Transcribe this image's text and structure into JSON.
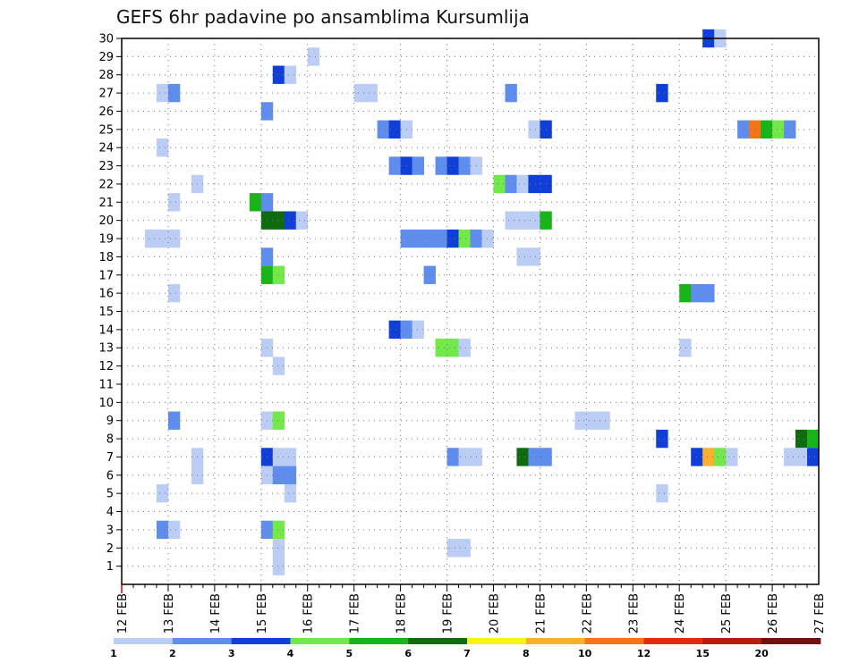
{
  "chart_data": {
    "type": "heatmap",
    "title": "GEFS 6hr padavine po ansamblima Kursumlija",
    "xlabel": "",
    "ylabel": "",
    "y_ticks": [
      "1",
      "2",
      "3",
      "4",
      "5",
      "6",
      "7",
      "8",
      "9",
      "10",
      "11",
      "12",
      "13",
      "14",
      "15",
      "16",
      "17",
      "18",
      "19",
      "20",
      "21",
      "22",
      "23",
      "24",
      "25",
      "26",
      "27",
      "28",
      "29",
      "30"
    ],
    "x_ticks": [
      "12 FEB",
      "13 FEB",
      "14 FEB",
      "15 FEB",
      "16 FEB",
      "17 FEB",
      "18 FEB",
      "19 FEB",
      "20 FEB",
      "21 FEB",
      "22 FEB",
      "23 FEB",
      "24 FEB",
      "25 FEB",
      "26 FEB",
      "27 FEB"
    ],
    "x_range_days": [
      12,
      27
    ],
    "y_range": [
      0,
      30
    ],
    "grid": true,
    "legend": {
      "position": "bottom",
      "levels": [
        "1",
        "2",
        "3",
        "4",
        "5",
        "6",
        "7",
        "8",
        "10",
        "12",
        "15",
        "20"
      ],
      "colors": [
        "#bccdf5",
        "#5f8ded",
        "#0f3fd6",
        "#72e84b",
        "#18b518",
        "#0e6b0e",
        "#f9f313",
        "#f9b030",
        "#f57417",
        "#e22a0e",
        "#b51e0e",
        "#701010"
      ]
    },
    "cells": [
      {
        "m": 30,
        "d": 24.5,
        "c": 3
      },
      {
        "m": 30,
        "d": 24.75,
        "c": 1
      },
      {
        "m": 29,
        "d": 16.0,
        "c": 1
      },
      {
        "m": 28,
        "d": 15.25,
        "c": 3
      },
      {
        "m": 28,
        "d": 15.5,
        "c": 1
      },
      {
        "m": 27,
        "d": 12.75,
        "c": 1
      },
      {
        "m": 27,
        "d": 13.0,
        "c": 2
      },
      {
        "m": 27,
        "d": 17.0,
        "c": 1
      },
      {
        "m": 27,
        "d": 17.25,
        "c": 1
      },
      {
        "m": 27,
        "d": 20.25,
        "c": 2
      },
      {
        "m": 27,
        "d": 23.5,
        "c": 3
      },
      {
        "m": 26,
        "d": 15.0,
        "c": 2
      },
      {
        "m": 25,
        "d": 17.5,
        "c": 2
      },
      {
        "m": 25,
        "d": 17.75,
        "c": 3
      },
      {
        "m": 25,
        "d": 18.0,
        "c": 1
      },
      {
        "m": 25,
        "d": 20.75,
        "c": 1
      },
      {
        "m": 25,
        "d": 21.0,
        "c": 3
      },
      {
        "m": 25,
        "d": 25.25,
        "c": 2
      },
      {
        "m": 25,
        "d": 25.5,
        "c": 9
      },
      {
        "m": 25,
        "d": 25.75,
        "c": 5
      },
      {
        "m": 25,
        "d": 26.0,
        "c": 4
      },
      {
        "m": 25,
        "d": 26.25,
        "c": 2
      },
      {
        "m": 24,
        "d": 12.75,
        "c": 1
      },
      {
        "m": 23,
        "d": 17.75,
        "c": 2
      },
      {
        "m": 23,
        "d": 18.0,
        "c": 3
      },
      {
        "m": 23,
        "d": 18.25,
        "c": 2
      },
      {
        "m": 23,
        "d": 18.75,
        "c": 2
      },
      {
        "m": 23,
        "d": 19.0,
        "c": 3
      },
      {
        "m": 23,
        "d": 19.25,
        "c": 2
      },
      {
        "m": 23,
        "d": 19.5,
        "c": 1
      },
      {
        "m": 22,
        "d": 13.5,
        "c": 1
      },
      {
        "m": 22,
        "d": 20.0,
        "c": 4
      },
      {
        "m": 22,
        "d": 20.25,
        "c": 2
      },
      {
        "m": 22,
        "d": 20.5,
        "c": 1
      },
      {
        "m": 22,
        "d": 20.75,
        "c": 3
      },
      {
        "m": 22,
        "d": 21.0,
        "c": 3
      },
      {
        "m": 21,
        "d": 13.0,
        "c": 1
      },
      {
        "m": 21,
        "d": 14.75,
        "c": 5
      },
      {
        "m": 21,
        "d": 15.0,
        "c": 2
      },
      {
        "m": 20,
        "d": 15.0,
        "c": 6
      },
      {
        "m": 20,
        "d": 15.25,
        "c": 6
      },
      {
        "m": 20,
        "d": 15.5,
        "c": 3
      },
      {
        "m": 20,
        "d": 15.75,
        "c": 1
      },
      {
        "m": 20,
        "d": 20.25,
        "c": 1
      },
      {
        "m": 20,
        "d": 20.5,
        "c": 1
      },
      {
        "m": 20,
        "d": 20.75,
        "c": 1
      },
      {
        "m": 20,
        "d": 21.0,
        "c": 5
      },
      {
        "m": 19,
        "d": 12.5,
        "c": 1
      },
      {
        "m": 19,
        "d": 12.75,
        "c": 1
      },
      {
        "m": 19,
        "d": 13.0,
        "c": 1
      },
      {
        "m": 19,
        "d": 18.0,
        "c": 2
      },
      {
        "m": 19,
        "d": 18.25,
        "c": 2
      },
      {
        "m": 19,
        "d": 18.5,
        "c": 2
      },
      {
        "m": 19,
        "d": 18.75,
        "c": 2
      },
      {
        "m": 19,
        "d": 19.0,
        "c": 3
      },
      {
        "m": 19,
        "d": 19.25,
        "c": 4
      },
      {
        "m": 19,
        "d": 19.5,
        "c": 2
      },
      {
        "m": 19,
        "d": 19.75,
        "c": 1
      },
      {
        "m": 18,
        "d": 15.0,
        "c": 2
      },
      {
        "m": 18,
        "d": 20.5,
        "c": 1
      },
      {
        "m": 18,
        "d": 20.75,
        "c": 1
      },
      {
        "m": 17,
        "d": 15.0,
        "c": 5
      },
      {
        "m": 17,
        "d": 15.25,
        "c": 4
      },
      {
        "m": 17,
        "d": 18.5,
        "c": 2
      },
      {
        "m": 16,
        "d": 13.0,
        "c": 1
      },
      {
        "m": 16,
        "d": 24.0,
        "c": 5
      },
      {
        "m": 16,
        "d": 24.25,
        "c": 2
      },
      {
        "m": 16,
        "d": 24.5,
        "c": 2
      },
      {
        "m": 14,
        "d": 17.75,
        "c": 3
      },
      {
        "m": 14,
        "d": 18.0,
        "c": 2
      },
      {
        "m": 14,
        "d": 18.25,
        "c": 1
      },
      {
        "m": 13,
        "d": 15.0,
        "c": 1
      },
      {
        "m": 13,
        "d": 18.75,
        "c": 4
      },
      {
        "m": 13,
        "d": 19.0,
        "c": 4
      },
      {
        "m": 13,
        "d": 19.25,
        "c": 1
      },
      {
        "m": 13,
        "d": 24.0,
        "c": 1
      },
      {
        "m": 12,
        "d": 15.25,
        "c": 1
      },
      {
        "m": 9,
        "d": 13.0,
        "c": 2
      },
      {
        "m": 9,
        "d": 15.0,
        "c": 1
      },
      {
        "m": 9,
        "d": 15.25,
        "c": 4
      },
      {
        "m": 9,
        "d": 21.75,
        "c": 1
      },
      {
        "m": 9,
        "d": 22.0,
        "c": 1
      },
      {
        "m": 9,
        "d": 22.25,
        "c": 1
      },
      {
        "m": 8,
        "d": 23.5,
        "c": 3
      },
      {
        "m": 8,
        "d": 26.5,
        "c": 6
      },
      {
        "m": 8,
        "d": 26.75,
        "c": 5
      },
      {
        "m": 7,
        "d": 13.5,
        "c": 1
      },
      {
        "m": 7,
        "d": 15.0,
        "c": 3
      },
      {
        "m": 7,
        "d": 15.25,
        "c": 1
      },
      {
        "m": 7,
        "d": 15.5,
        "c": 1
      },
      {
        "m": 7,
        "d": 19.0,
        "c": 2
      },
      {
        "m": 7,
        "d": 19.25,
        "c": 1
      },
      {
        "m": 7,
        "d": 19.5,
        "c": 1
      },
      {
        "m": 7,
        "d": 20.5,
        "c": 6
      },
      {
        "m": 7,
        "d": 20.75,
        "c": 2
      },
      {
        "m": 7,
        "d": 21.0,
        "c": 2
      },
      {
        "m": 7,
        "d": 24.25,
        "c": 3
      },
      {
        "m": 7,
        "d": 24.5,
        "c": 8
      },
      {
        "m": 7,
        "d": 24.75,
        "c": 4
      },
      {
        "m": 7,
        "d": 25.0,
        "c": 1
      },
      {
        "m": 7,
        "d": 26.25,
        "c": 1
      },
      {
        "m": 7,
        "d": 26.5,
        "c": 1
      },
      {
        "m": 7,
        "d": 26.75,
        "c": 3
      },
      {
        "m": 6,
        "d": 13.5,
        "c": 1
      },
      {
        "m": 6,
        "d": 15.0,
        "c": 1
      },
      {
        "m": 6,
        "d": 15.25,
        "c": 2
      },
      {
        "m": 6,
        "d": 15.5,
        "c": 2
      },
      {
        "m": 5,
        "d": 12.75,
        "c": 1
      },
      {
        "m": 5,
        "d": 15.5,
        "c": 1
      },
      {
        "m": 5,
        "d": 23.5,
        "c": 1
      },
      {
        "m": 3,
        "d": 12.75,
        "c": 2
      },
      {
        "m": 3,
        "d": 13.0,
        "c": 1
      },
      {
        "m": 3,
        "d": 15.0,
        "c": 2
      },
      {
        "m": 3,
        "d": 15.25,
        "c": 4
      },
      {
        "m": 2,
        "d": 15.25,
        "c": 1
      },
      {
        "m": 2,
        "d": 19.0,
        "c": 1
      },
      {
        "m": 2,
        "d": 19.25,
        "c": 1
      },
      {
        "m": 1,
        "d": 15.25,
        "c": 1
      }
    ]
  }
}
